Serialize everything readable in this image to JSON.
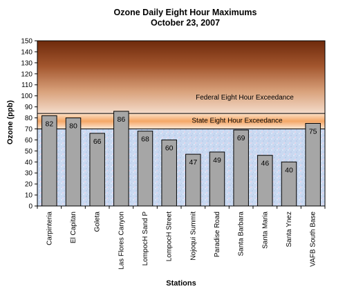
{
  "chart_data": {
    "type": "bar",
    "title": "Ozone Daily Eight Hour Maximums",
    "subtitle": "October 23, 2007",
    "xlabel": "Stations",
    "ylabel": "Ozone (ppb)",
    "ylim": [
      0,
      150
    ],
    "yticks": [
      0,
      10,
      20,
      30,
      40,
      50,
      60,
      70,
      80,
      90,
      100,
      110,
      120,
      130,
      140,
      150
    ],
    "categories": [
      "Carpinteria",
      "El Capitan",
      "Goleta",
      "Las Flores Canyon",
      "LompocH Sand P",
      "LompocH Street",
      "Nojoqui Summit",
      "Paradise Road",
      "Santa Barbara",
      "Santa Maria",
      "Santa Ynez",
      "VAFB South Base"
    ],
    "values": [
      82,
      80,
      66,
      86,
      68,
      60,
      47,
      49,
      69,
      46,
      40,
      75
    ],
    "value_labels": [
      "82",
      "80",
      "66",
      "86",
      "68",
      "60",
      "47",
      "49",
      "69",
      "46",
      "40",
      "75"
    ],
    "thresholds": [
      {
        "label": "State Eight Hour Exceedance",
        "value": 70
      },
      {
        "label": "Federal Eight Hour Exceedance",
        "value": 84
      }
    ],
    "bar_color": "#a6a6a6",
    "background_colors": {
      "below_state": "#c8d8f0",
      "state_band": "#f5b27a",
      "federal_top": "#7a2e0f"
    },
    "grid": false,
    "legend": "none"
  }
}
